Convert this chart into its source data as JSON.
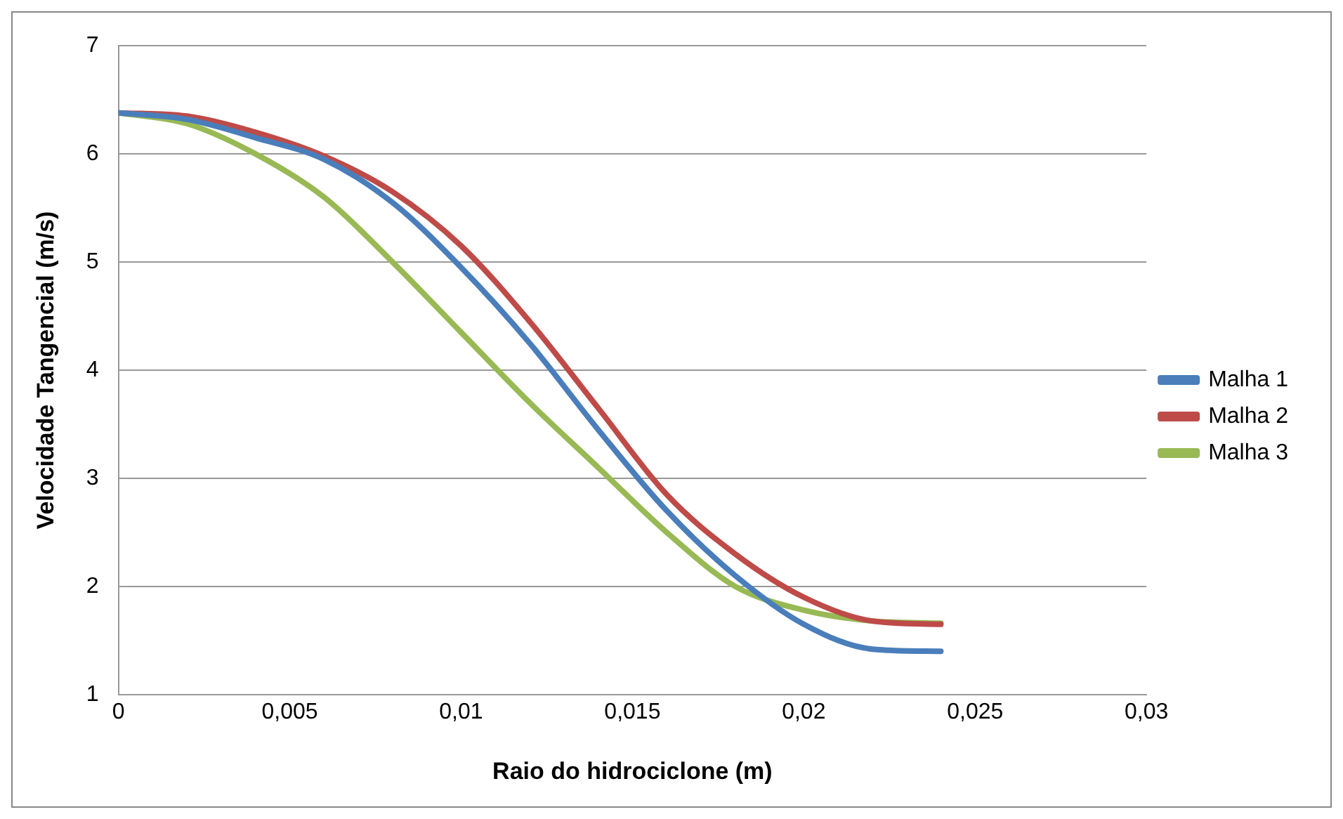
{
  "chart_data": {
    "type": "line",
    "xlabel": "Raio do hidrociclone (m)",
    "ylabel": "Velocidade Tangencial (m/s)",
    "x": [
      0,
      0.002,
      0.004,
      0.006,
      0.008,
      0.01,
      0.012,
      0.014,
      0.016,
      0.018,
      0.02,
      0.022,
      0.024
    ],
    "series": [
      {
        "name": "Malha 1",
        "color": "#4a7ebb",
        "values": [
          6.38,
          6.32,
          6.15,
          5.95,
          5.55,
          4.95,
          4.25,
          3.45,
          2.7,
          2.1,
          1.65,
          1.42,
          1.4
        ]
      },
      {
        "name": "Malha 2",
        "color": "#be4b48",
        "values": [
          6.38,
          6.35,
          6.2,
          5.98,
          5.65,
          5.15,
          4.45,
          3.65,
          2.85,
          2.3,
          1.9,
          1.68,
          1.65
        ]
      },
      {
        "name": "Malha 3",
        "color": "#98b954",
        "values": [
          6.38,
          6.28,
          6.0,
          5.6,
          5.0,
          4.35,
          3.7,
          3.1,
          2.5,
          2.0,
          1.78,
          1.68,
          1.66
        ]
      }
    ],
    "xlim": [
      0,
      0.03
    ],
    "xticks": [
      {
        "value": 0,
        "label": "0"
      },
      {
        "value": 0.005,
        "label": "0,005"
      },
      {
        "value": 0.01,
        "label": "0,01"
      },
      {
        "value": 0.015,
        "label": "0,015"
      },
      {
        "value": 0.02,
        "label": "0,02"
      },
      {
        "value": 0.025,
        "label": "0,025"
      },
      {
        "value": 0.03,
        "label": "0,03"
      }
    ],
    "ylim": [
      1,
      7
    ],
    "yticks": [
      1,
      2,
      3,
      4,
      5,
      6,
      7
    ],
    "grid": "y",
    "legend": "right",
    "marker": "none",
    "line_style": "solid"
  }
}
